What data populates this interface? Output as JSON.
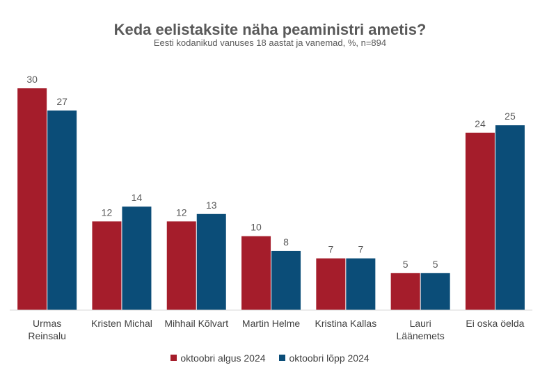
{
  "chart_data": {
    "type": "bar",
    "title": "Keda eelistaksite näha peaministri ametis?",
    "subtitle": "Eesti kodanikud vanuses 18 aastat ja vanemad, %, n=894",
    "categories": [
      [
        "Urmas",
        "Reinsalu"
      ],
      [
        "Kristen Michal"
      ],
      [
        "Mihhail Kõlvart"
      ],
      [
        "Martin Helme"
      ],
      [
        "Kristina Kallas"
      ],
      [
        "Lauri",
        "Läänemets"
      ],
      [
        "Ei oska öelda"
      ]
    ],
    "series": [
      {
        "name": "oktoobri algus 2024",
        "color": "#a51d2b",
        "values": [
          30,
          12,
          12,
          10,
          7,
          5,
          24
        ]
      },
      {
        "name": "oktoobri lõpp 2024",
        "color": "#0b4d78",
        "values": [
          27,
          14,
          13,
          8,
          7,
          5,
          25
        ]
      }
    ],
    "ylim": [
      0,
      30
    ],
    "grid": false,
    "legend_position": "bottom"
  }
}
